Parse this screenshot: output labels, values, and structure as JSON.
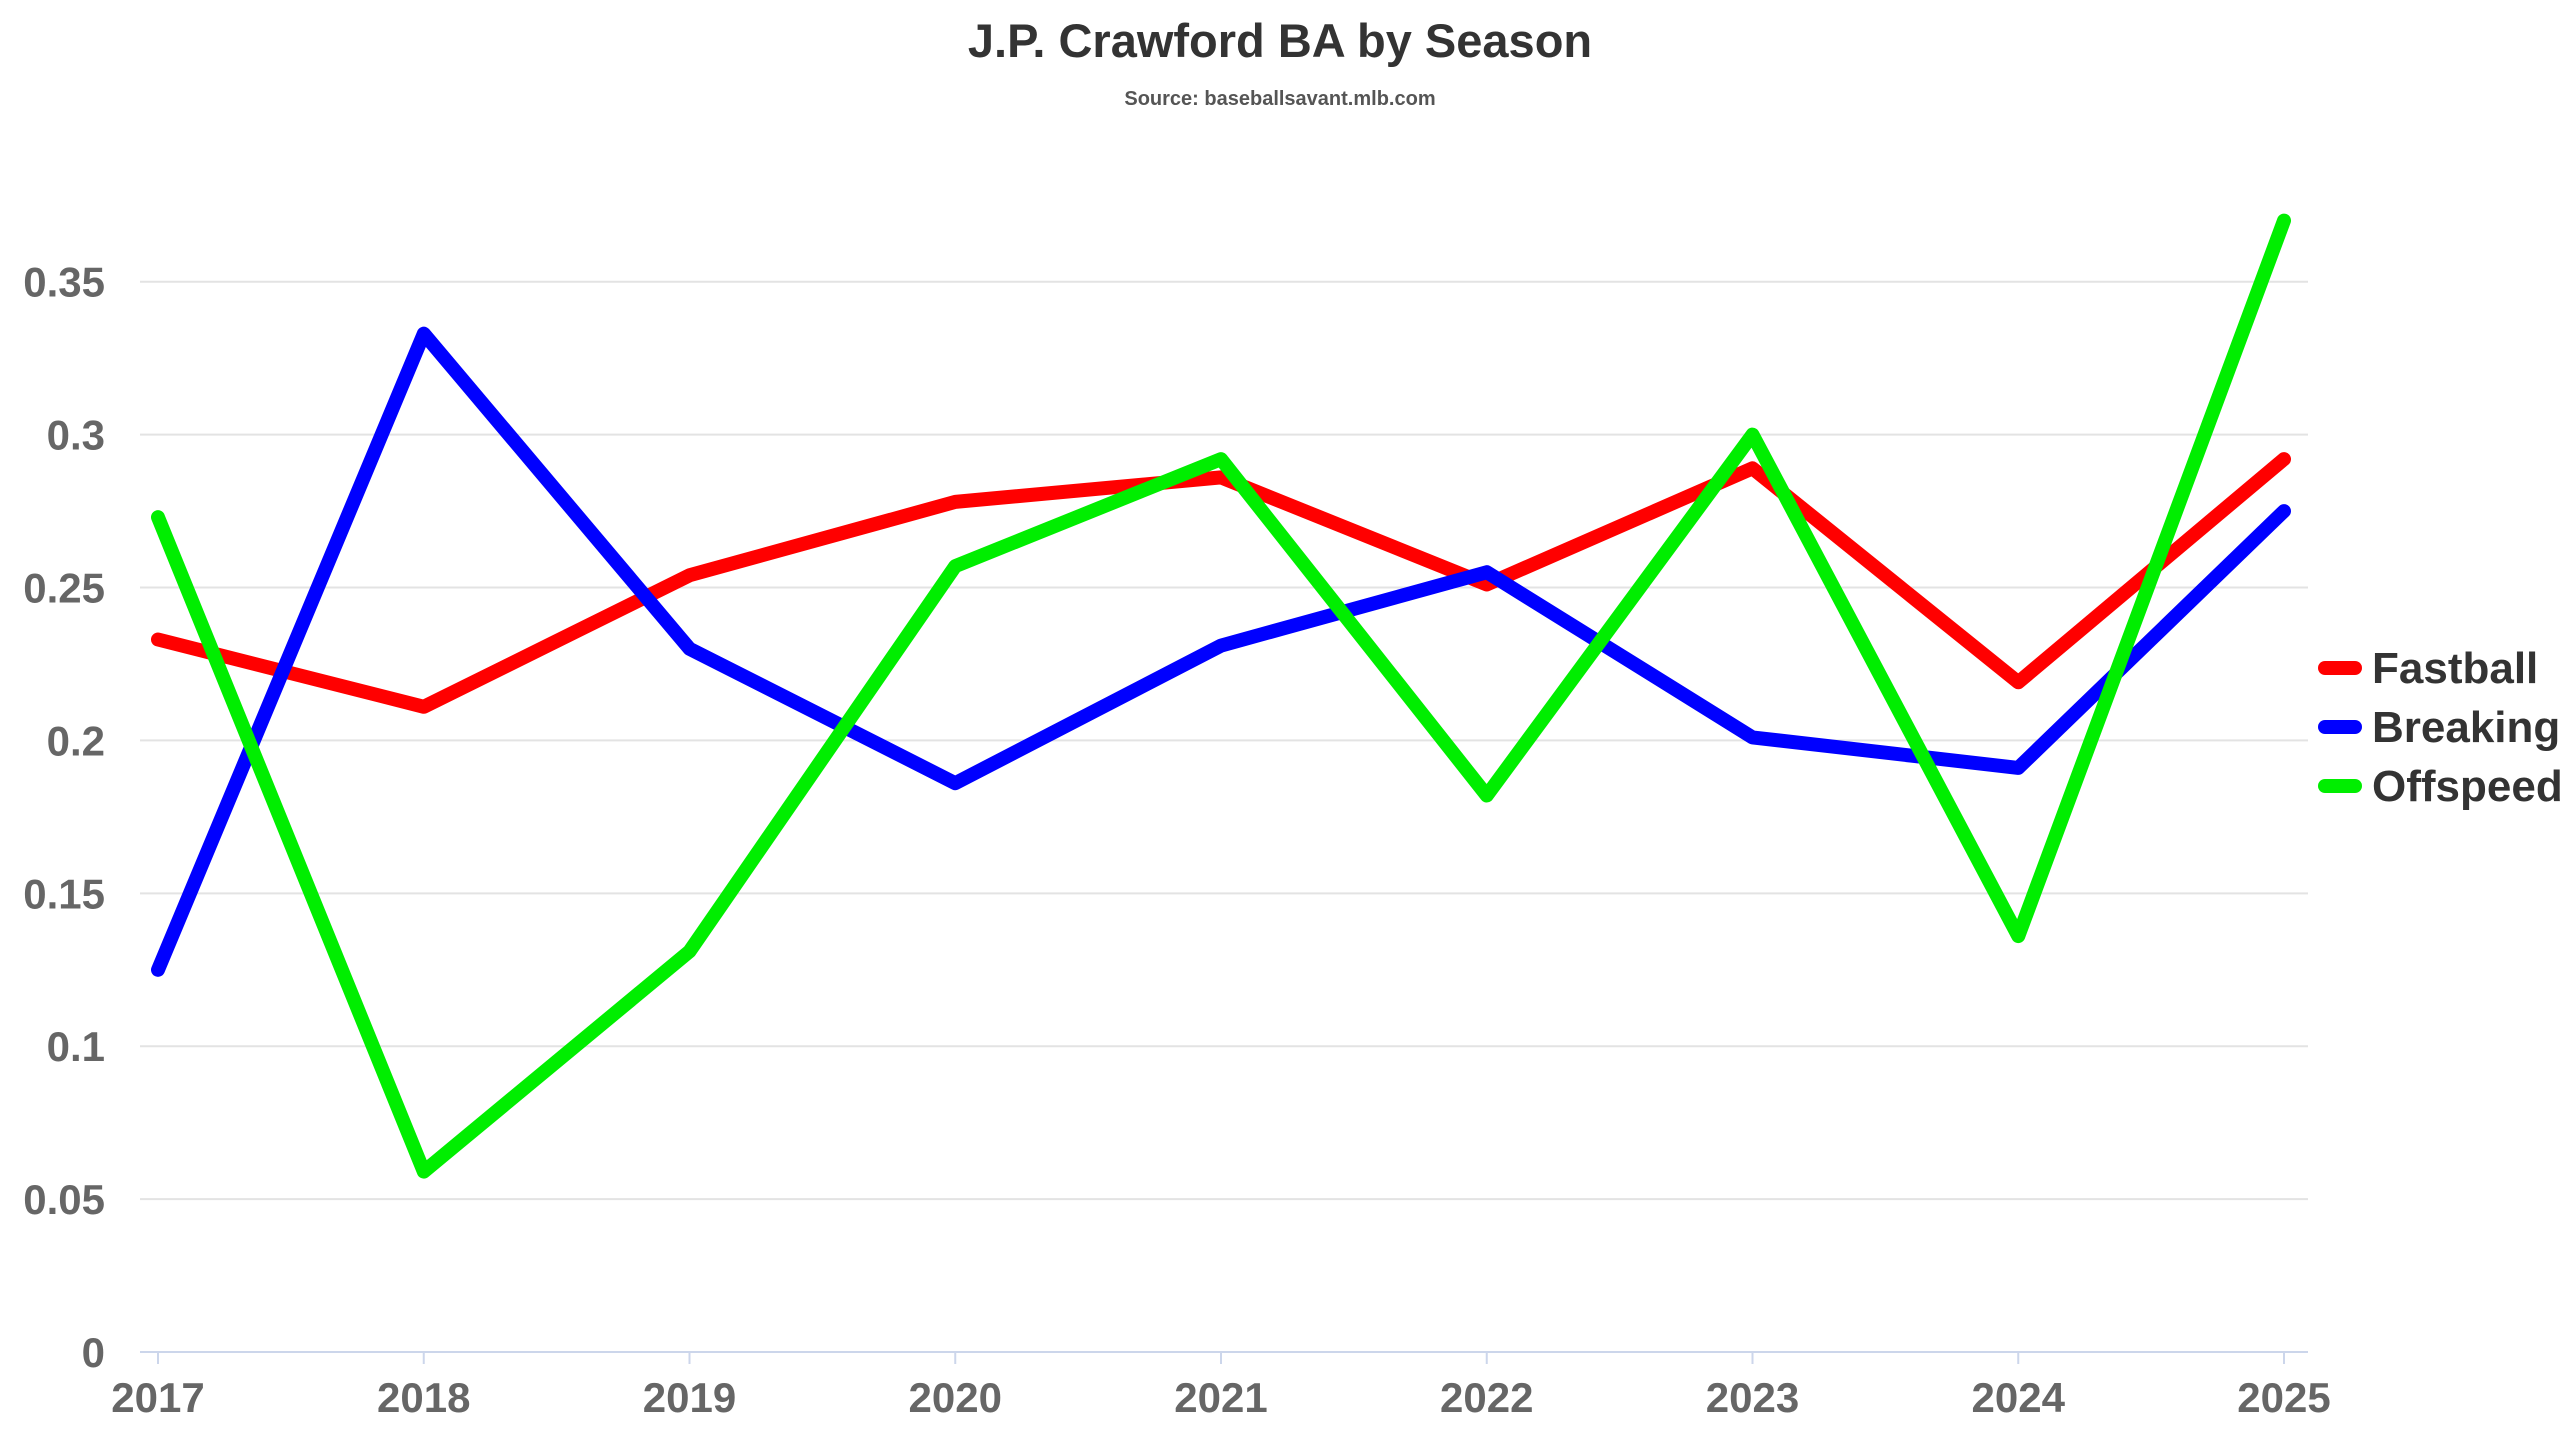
{
  "chart_data": {
    "type": "line",
    "title": "J.P. Crawford BA by Season",
    "subtitle": "Source: baseballsavant.mlb.com",
    "xlabel": "",
    "ylabel": "",
    "x": [
      "2017",
      "2018",
      "2019",
      "2020",
      "2021",
      "2022",
      "2023",
      "2024",
      "2025"
    ],
    "ylim": [
      0,
      0.38
    ],
    "yticks": [
      {
        "value": 0,
        "label": "0"
      },
      {
        "value": 0.05,
        "label": "0.05"
      },
      {
        "value": 0.1,
        "label": "0.1"
      },
      {
        "value": 0.15,
        "label": "0.15"
      },
      {
        "value": 0.2,
        "label": "0.2"
      },
      {
        "value": 0.25,
        "label": "0.25"
      },
      {
        "value": 0.3,
        "label": "0.3"
      },
      {
        "value": 0.35,
        "label": "0.35"
      }
    ],
    "grid": true,
    "legend_position": "right-middle",
    "series": [
      {
        "name": "Fastball",
        "color": "#ff0000",
        "values": [
          0.233,
          0.211,
          0.254,
          0.278,
          0.286,
          0.251,
          0.289,
          0.219,
          0.292
        ]
      },
      {
        "name": "Breaking",
        "color": "#0000ff",
        "values": [
          0.125,
          0.333,
          0.23,
          0.186,
          0.231,
          0.255,
          0.201,
          0.191,
          0.275
        ]
      },
      {
        "name": "Offspeed",
        "color": "#00ee00",
        "values": [
          0.273,
          0.059,
          0.131,
          0.257,
          0.292,
          0.182,
          0.3,
          0.136,
          0.37
        ]
      }
    ]
  }
}
